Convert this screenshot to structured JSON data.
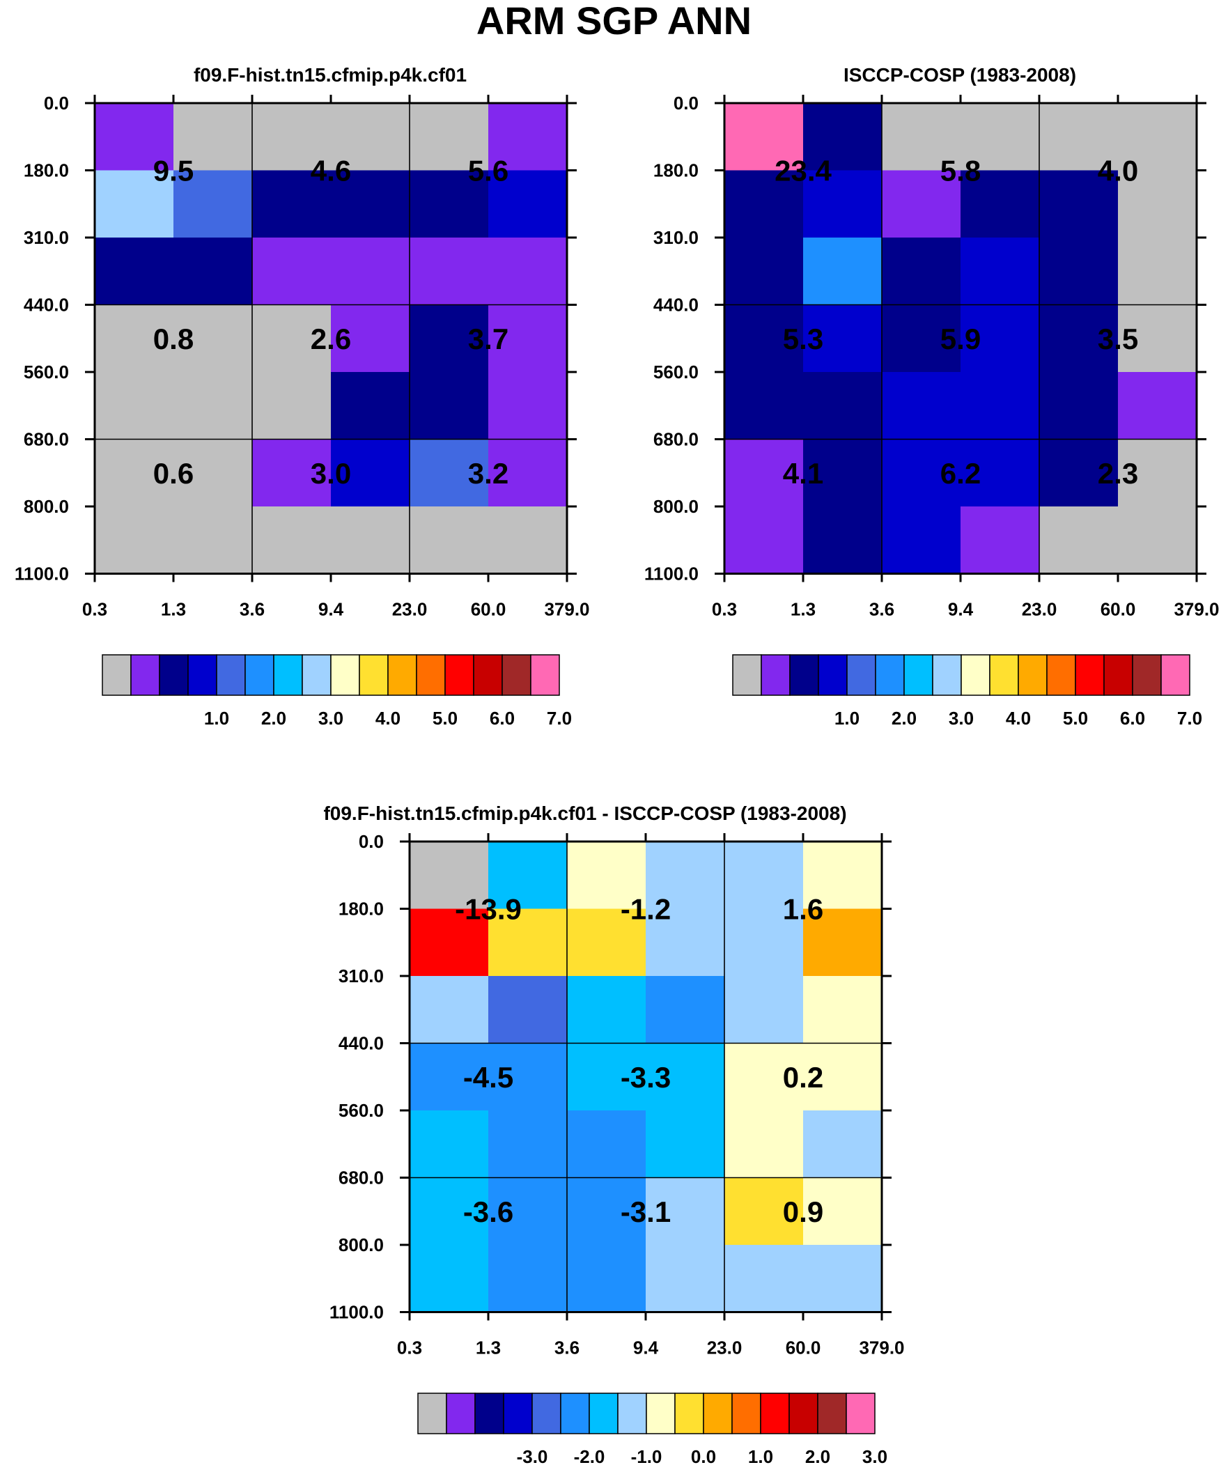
{
  "title": "ARM SGP ANN",
  "colorbars": {
    "abs": {
      "colors": [
        "#c0c0c0",
        "#8228ee",
        "#00008b",
        "#0000cd",
        "#4169e1",
        "#1e90ff",
        "#00bfff",
        "#a0d2ff",
        "#ffffc8",
        "#ffe030",
        "#ffaa00",
        "#ff6e00",
        "#ff0000",
        "#c80000",
        "#a02828",
        "#ff69b4"
      ],
      "labels": [
        "1.0",
        "2.0",
        "3.0",
        "4.0",
        "5.0",
        "6.0",
        "7.0"
      ]
    },
    "diff": {
      "colors": [
        "#c0c0c0",
        "#8228ee",
        "#00008b",
        "#0000cd",
        "#4169e1",
        "#1e90ff",
        "#00bfff",
        "#a0d2ff",
        "#ffffc8",
        "#ffe030",
        "#ffaa00",
        "#ff6e00",
        "#ff0000",
        "#c80000",
        "#a02828",
        "#ff69b4"
      ],
      "labels": [
        "-3.0",
        "-2.0",
        "-1.0",
        "0.0",
        "1.0",
        "2.0",
        "3.0"
      ]
    }
  },
  "chart_data": [
    {
      "type": "heatmap",
      "title": "f09.F-hist.tn15.cfmip.p4k.cf01",
      "x_ticks": [
        "0.3",
        "1.3",
        "3.6",
        "9.4",
        "23.0",
        "60.0",
        "379.0"
      ],
      "y_ticks": [
        "0.0",
        "180.0",
        "310.0",
        "440.0",
        "560.0",
        "680.0",
        "800.0",
        "1100.0"
      ],
      "colorbar": "abs",
      "cells": [
        [
          1,
          0,
          0,
          0,
          0,
          1
        ],
        [
          7,
          4,
          2,
          2,
          2,
          3
        ],
        [
          2,
          2,
          1,
          1,
          1,
          1
        ],
        [
          0,
          0,
          0,
          1,
          2,
          1
        ],
        [
          0,
          0,
          0,
          2,
          2,
          1
        ],
        [
          0,
          0,
          1,
          3,
          4,
          1
        ],
        [
          0,
          0,
          0,
          0,
          0,
          0
        ]
      ],
      "summary_values": [
        [
          "9.5",
          "4.6",
          "5.6"
        ],
        [
          "0.8",
          "2.6",
          "3.7"
        ],
        [
          "0.6",
          "3.0",
          "3.2"
        ]
      ]
    },
    {
      "type": "heatmap",
      "title": "ISCCP-COSP (1983-2008)",
      "x_ticks": [
        "0.3",
        "1.3",
        "3.6",
        "9.4",
        "23.0",
        "60.0",
        "379.0"
      ],
      "y_ticks": [
        "0.0",
        "180.0",
        "310.0",
        "440.0",
        "560.0",
        "680.0",
        "800.0",
        "1100.0"
      ],
      "colorbar": "abs",
      "cells": [
        [
          15,
          2,
          0,
          0,
          0,
          0
        ],
        [
          2,
          3,
          1,
          2,
          2,
          0
        ],
        [
          2,
          5,
          2,
          3,
          2,
          0
        ],
        [
          2,
          3,
          2,
          3,
          2,
          0
        ],
        [
          2,
          2,
          3,
          3,
          2,
          1
        ],
        [
          1,
          2,
          3,
          3,
          2,
          0
        ],
        [
          1,
          2,
          3,
          1,
          0,
          0
        ]
      ],
      "summary_values": [
        [
          "23.4",
          "5.8",
          "4.0"
        ],
        [
          "5.3",
          "5.9",
          "3.5"
        ],
        [
          "4.1",
          "6.2",
          "2.3"
        ]
      ]
    },
    {
      "type": "heatmap",
      "title": "f09.F-hist.tn15.cfmip.p4k.cf01 - ISCCP-COSP (1983-2008)",
      "x_ticks": [
        "0.3",
        "1.3",
        "3.6",
        "9.4",
        "23.0",
        "60.0",
        "379.0"
      ],
      "y_ticks": [
        "0.0",
        "180.0",
        "310.0",
        "440.0",
        "560.0",
        "680.0",
        "800.0",
        "1100.0"
      ],
      "colorbar": "diff",
      "cells": [
        [
          0,
          6,
          8,
          7,
          7,
          8
        ],
        [
          12,
          9,
          9,
          7,
          7,
          10
        ],
        [
          7,
          4,
          6,
          5,
          7,
          8
        ],
        [
          5,
          5,
          6,
          6,
          8,
          8
        ],
        [
          6,
          5,
          5,
          6,
          8,
          7
        ],
        [
          6,
          5,
          5,
          7,
          9,
          8
        ],
        [
          6,
          5,
          5,
          7,
          7,
          7
        ]
      ],
      "summary_values": [
        [
          "-13.9",
          "-1.2",
          "1.6"
        ],
        [
          "-4.5",
          "-3.3",
          "0.2"
        ],
        [
          "-3.6",
          "-3.1",
          "0.9"
        ]
      ]
    }
  ]
}
